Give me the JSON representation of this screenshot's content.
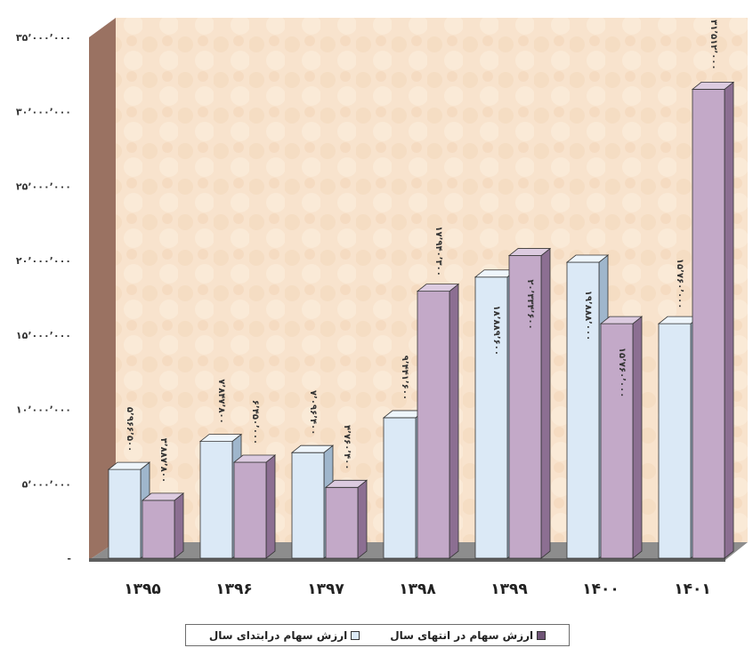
{
  "chart_data": {
    "type": "bar",
    "categories": [
      "۱۳۹۵",
      "۱۳۹۶",
      "۱۳۹۷",
      "۱۳۹۸",
      "۱۳۹۹",
      "۱۴۰۰",
      "۱۴۰۱"
    ],
    "series": [
      {
        "name": "ارزش سهام درابتدای سال",
        "values": [
          5966500,
          7847800,
          7096400,
          9441600,
          18889600,
          19888000,
          15760000
        ],
        "labels": [
          "۵٬۹۶۶٬۵۰۰",
          "۷٬۸۴۷٬۸۰۰",
          "۷٬۰۹۶٬۴۰۰",
          "۹٬۴۴۱٬۶۰۰",
          "۱۸٬۸۸۹٬۶۰۰",
          "۱۹٬۸۸۸٬۰۰۰",
          "۱۵٬۷۶۰٬۰۰۰"
        ]
      },
      {
        "name": "ارزش سهام در انتهای سال",
        "values": [
          3887800,
          6450000,
          4760400,
          17940300,
          20334600,
          15760000,
          31512000
        ],
        "labels": [
          "۳٬۸۸۷٬۸۰۰",
          "۶٬۴۵۰٬۰۰۰",
          "۴٬۷۶۰٬۴۰۰",
          "۱۷٬۹۴۰٬۳۰۰",
          "۲۰٬۳۳۴٬۶۰۰",
          "۱۵٬۷۶۰٬۰۰۰",
          "۳۱٬۵۱۲٬۰۰۰"
        ]
      }
    ],
    "yticks": [
      0,
      5000000,
      10000000,
      15000000,
      20000000,
      25000000,
      30000000,
      35000000
    ],
    "ytick_labels": [
      "-",
      "۵٬۰۰۰٬۰۰۰",
      "۱۰٬۰۰۰٬۰۰۰",
      "۱۵٬۰۰۰٬۰۰۰",
      "۲۰٬۰۰۰٬۰۰۰",
      "۲۵٬۰۰۰٬۰۰۰",
      "۳۰٬۰۰۰٬۰۰۰",
      "۳۵٬۰۰۰٬۰۰۰"
    ],
    "ylim": [
      0,
      35000000
    ],
    "grid": false,
    "legend_position": "bottom",
    "colors": {
      "start": "#dbe9f6",
      "start_side": "#9fb6cc",
      "start_top": "#eef5fb",
      "end": "#c3a9c8",
      "end_side": "#8c6f92",
      "end_top": "#dccbe0",
      "back_wall": "#f7e1c9",
      "side_wall": "#9a7262",
      "floor": "#7a7a7a"
    }
  },
  "legend": {
    "items": [
      {
        "label": "ارزش سهام در انتهای سال",
        "color": "#6f5476"
      },
      {
        "label": "ارزش سهام درابتدای سال",
        "color": "#dbe9f6"
      }
    ]
  }
}
